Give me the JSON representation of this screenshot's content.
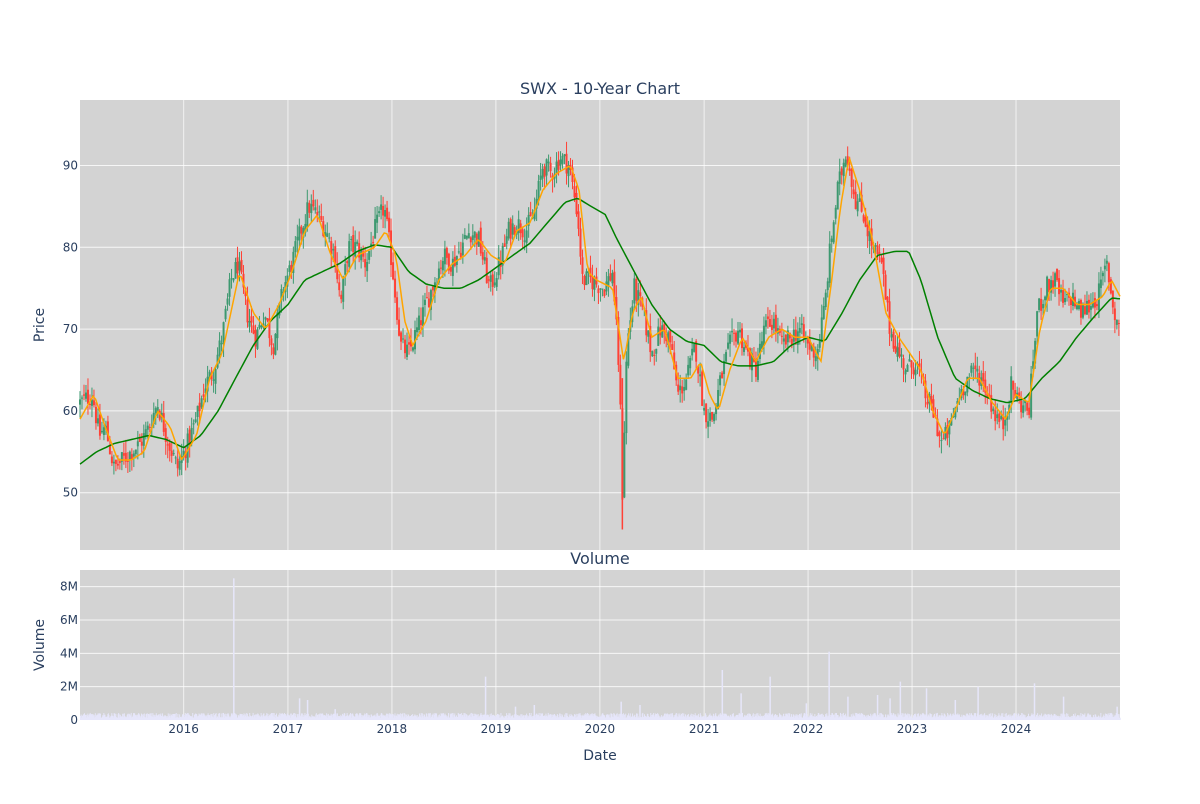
{
  "chart_data": [
    {
      "type": "candlestick",
      "title": "SWX - 10-Year Chart",
      "ylabel": "Price",
      "ylim": [
        43,
        98
      ],
      "yticks": [
        50,
        60,
        70,
        80,
        90
      ],
      "xrange": [
        "2015-01-02",
        "2024-12-31"
      ],
      "grid": true,
      "legend": "none",
      "colors": {
        "background": "#d3d3d3",
        "increasing": "#3d9970",
        "decreasing": "#ff4136",
        "ma_short": "#ffa500",
        "ma_long": "#008000",
        "grid": "#ffffff"
      },
      "close_points": [
        [
          "2015-01-02",
          61
        ],
        [
          "2015-02-15",
          62
        ],
        [
          "2015-03-10",
          57
        ],
        [
          "2015-04-01",
          58
        ],
        [
          "2015-05-01",
          53
        ],
        [
          "2015-06-01",
          54
        ],
        [
          "2015-07-01",
          55
        ],
        [
          "2015-08-01",
          56
        ],
        [
          "2015-09-01",
          58
        ],
        [
          "2015-10-01",
          61
        ],
        [
          "2015-11-01",
          57
        ],
        [
          "2015-12-10",
          53
        ],
        [
          "2016-01-15",
          56
        ],
        [
          "2016-02-15",
          59
        ],
        [
          "2016-03-15",
          63
        ],
        [
          "2016-04-15",
          65
        ],
        [
          "2016-05-15",
          69
        ],
        [
          "2016-06-15",
          76
        ],
        [
          "2016-07-10",
          78
        ],
        [
          "2016-08-10",
          72
        ],
        [
          "2016-09-10",
          69
        ],
        [
          "2016-10-10",
          72
        ],
        [
          "2016-11-10",
          68
        ],
        [
          "2016-12-15",
          75
        ],
        [
          "2017-01-15",
          78
        ],
        [
          "2017-02-15",
          82
        ],
        [
          "2017-03-15",
          85
        ],
        [
          "2017-04-15",
          84
        ],
        [
          "2017-05-15",
          82
        ],
        [
          "2017-06-15",
          79
        ],
        [
          "2017-07-05",
          73
        ],
        [
          "2017-08-01",
          80
        ],
        [
          "2017-09-01",
          80
        ],
        [
          "2017-10-01",
          78
        ],
        [
          "2017-11-01",
          82
        ],
        [
          "2017-12-05",
          85
        ],
        [
          "2018-01-01",
          78
        ],
        [
          "2018-02-01",
          68
        ],
        [
          "2018-03-01",
          67
        ],
        [
          "2018-04-01",
          70
        ],
        [
          "2018-05-01",
          73
        ],
        [
          "2018-06-01",
          76
        ],
        [
          "2018-07-01",
          79
        ],
        [
          "2018-08-01",
          78
        ],
        [
          "2018-09-01",
          80
        ],
        [
          "2018-10-01",
          82
        ],
        [
          "2018-11-01",
          81
        ],
        [
          "2018-12-10",
          75
        ],
        [
          "2019-01-15",
          78
        ],
        [
          "2019-02-15",
          82
        ],
        [
          "2019-03-15",
          83
        ],
        [
          "2019-04-15",
          82
        ],
        [
          "2019-05-15",
          84
        ],
        [
          "2019-06-15",
          90
        ],
        [
          "2019-07-15",
          89
        ],
        [
          "2019-08-15",
          91
        ],
        [
          "2019-09-15",
          90
        ],
        [
          "2019-10-15",
          84
        ],
        [
          "2019-11-01",
          76
        ],
        [
          "2019-12-01",
          76
        ],
        [
          "2020-01-15",
          75
        ],
        [
          "2020-02-15",
          77
        ],
        [
          "2020-03-10",
          64
        ],
        [
          "2020-03-20",
          50
        ],
        [
          "2020-04-05",
          68
        ],
        [
          "2020-05-01",
          75
        ],
        [
          "2020-06-01",
          72
        ],
        [
          "2020-07-01",
          67
        ],
        [
          "2020-08-01",
          70
        ],
        [
          "2020-09-01",
          69
        ],
        [
          "2020-10-01",
          62
        ],
        [
          "2020-11-01",
          64
        ],
        [
          "2020-12-01",
          68
        ],
        [
          "2021-01-01",
          60
        ],
        [
          "2021-02-01",
          59
        ],
        [
          "2021-03-01",
          64
        ],
        [
          "2021-04-01",
          68
        ],
        [
          "2021-05-01",
          70
        ],
        [
          "2021-06-01",
          67
        ],
        [
          "2021-07-01",
          65
        ],
        [
          "2021-08-01",
          70
        ],
        [
          "2021-09-01",
          71
        ],
        [
          "2021-10-01",
          68
        ],
        [
          "2021-11-01",
          69
        ],
        [
          "2021-12-01",
          70
        ],
        [
          "2022-01-01",
          68
        ],
        [
          "2022-02-01",
          67
        ],
        [
          "2022-03-01",
          73
        ],
        [
          "2022-03-20",
          80
        ],
        [
          "2022-04-15",
          87
        ],
        [
          "2022-05-15",
          92
        ],
        [
          "2022-06-15",
          86
        ],
        [
          "2022-07-15",
          84
        ],
        [
          "2022-08-15",
          80
        ],
        [
          "2022-09-15",
          78
        ],
        [
          "2022-10-15",
          70
        ],
        [
          "2022-11-15",
          67
        ],
        [
          "2022-12-15",
          65
        ],
        [
          "2023-01-15",
          66
        ],
        [
          "2023-02-15",
          62
        ],
        [
          "2023-03-15",
          60
        ],
        [
          "2023-04-15",
          56
        ],
        [
          "2023-05-15",
          58
        ],
        [
          "2023-06-15",
          62
        ],
        [
          "2023-07-15",
          64
        ],
        [
          "2023-08-15",
          65
        ],
        [
          "2023-09-15",
          63
        ],
        [
          "2023-10-15",
          60
        ],
        [
          "2023-11-15",
          58
        ],
        [
          "2023-12-15",
          63
        ],
        [
          "2024-01-15",
          61
        ],
        [
          "2024-02-15",
          60
        ],
        [
          "2024-03-15",
          72
        ],
        [
          "2024-04-15",
          75
        ],
        [
          "2024-05-15",
          76
        ],
        [
          "2024-06-15",
          73
        ],
        [
          "2024-07-15",
          74
        ],
        [
          "2024-08-15",
          72
        ],
        [
          "2024-09-15",
          73
        ],
        [
          "2024-10-15",
          74
        ],
        [
          "2024-11-15",
          78
        ],
        [
          "2024-12-10",
          72
        ],
        [
          "2024-12-31",
          70
        ]
      ],
      "ma_short_points": [
        [
          "2015-01-02",
          59
        ],
        [
          "2015-02-20",
          62
        ],
        [
          "2015-04-01",
          58
        ],
        [
          "2015-05-15",
          54
        ],
        [
          "2015-07-01",
          54
        ],
        [
          "2015-08-15",
          55
        ],
        [
          "2015-10-01",
          60
        ],
        [
          "2015-11-15",
          58
        ],
        [
          "2015-12-25",
          54
        ],
        [
          "2016-02-15",
          57
        ],
        [
          "2016-04-01",
          64
        ],
        [
          "2016-05-15",
          67
        ],
        [
          "2016-07-15",
          77
        ],
        [
          "2016-09-01",
          72
        ],
        [
          "2016-10-15",
          70
        ],
        [
          "2016-12-01",
          73
        ],
        [
          "2017-01-15",
          77
        ],
        [
          "2017-03-01",
          82
        ],
        [
          "2017-04-15",
          84
        ],
        [
          "2017-06-01",
          79
        ],
        [
          "2017-07-15",
          76
        ],
        [
          "2017-09-01",
          79
        ],
        [
          "2017-11-01",
          80
        ],
        [
          "2017-12-10",
          82
        ],
        [
          "2018-01-15",
          79
        ],
        [
          "2018-02-15",
          71
        ],
        [
          "2018-03-15",
          68
        ],
        [
          "2018-05-01",
          71
        ],
        [
          "2018-06-15",
          76
        ],
        [
          "2018-08-01",
          78
        ],
        [
          "2018-09-15",
          79
        ],
        [
          "2018-11-01",
          81
        ],
        [
          "2018-12-15",
          79
        ],
        [
          "2019-02-01",
          78
        ],
        [
          "2019-03-15",
          82
        ],
        [
          "2019-05-01",
          83
        ],
        [
          "2019-06-15",
          87
        ],
        [
          "2019-08-01",
          89
        ],
        [
          "2019-09-20",
          90
        ],
        [
          "2019-10-20",
          87
        ],
        [
          "2019-11-20",
          77
        ],
        [
          "2019-12-20",
          76
        ],
        [
          "2020-02-15",
          75
        ],
        [
          "2020-03-25",
          66
        ],
        [
          "2020-04-25",
          72
        ],
        [
          "2020-05-25",
          74
        ],
        [
          "2020-07-01",
          69
        ],
        [
          "2020-08-15",
          70
        ],
        [
          "2020-10-01",
          64
        ],
        [
          "2020-11-15",
          64
        ],
        [
          "2020-12-20",
          66
        ],
        [
          "2021-01-20",
          62
        ],
        [
          "2021-02-20",
          60
        ],
        [
          "2021-04-01",
          65
        ],
        [
          "2021-05-15",
          69
        ],
        [
          "2021-07-01",
          66
        ],
        [
          "2021-08-15",
          69
        ],
        [
          "2021-10-01",
          70
        ],
        [
          "2021-11-15",
          69
        ],
        [
          "2022-01-01",
          69
        ],
        [
          "2022-02-15",
          66
        ],
        [
          "2022-03-25",
          76
        ],
        [
          "2022-04-25",
          85
        ],
        [
          "2022-05-25",
          91
        ],
        [
          "2022-07-01",
          87
        ],
        [
          "2022-08-15",
          81
        ],
        [
          "2022-10-01",
          72
        ],
        [
          "2022-11-15",
          69
        ],
        [
          "2022-12-25",
          67
        ],
        [
          "2023-02-01",
          65
        ],
        [
          "2023-03-15",
          60
        ],
        [
          "2023-04-25",
          57
        ],
        [
          "2023-06-01",
          60
        ],
        [
          "2023-07-15",
          64
        ],
        [
          "2023-08-25",
          64
        ],
        [
          "2023-10-10",
          61
        ],
        [
          "2023-11-25",
          59
        ],
        [
          "2024-01-01",
          62
        ],
        [
          "2024-02-15",
          61
        ],
        [
          "2024-03-25",
          70
        ],
        [
          "2024-05-01",
          75
        ],
        [
          "2024-06-15",
          75
        ],
        [
          "2024-08-01",
          73
        ],
        [
          "2024-09-15",
          73
        ],
        [
          "2024-11-01",
          74
        ],
        [
          "2024-12-01",
          76
        ],
        [
          "2024-12-31",
          74
        ]
      ],
      "ma_long_points": [
        [
          "2015-01-02",
          53.5
        ],
        [
          "2015-03-01",
          55
        ],
        [
          "2015-05-01",
          56
        ],
        [
          "2015-07-01",
          56.5
        ],
        [
          "2015-09-01",
          57
        ],
        [
          "2015-11-01",
          56.5
        ],
        [
          "2016-01-01",
          55.5
        ],
        [
          "2016-03-01",
          57
        ],
        [
          "2016-05-01",
          60
        ],
        [
          "2016-07-01",
          64
        ],
        [
          "2016-09-01",
          68
        ],
        [
          "2016-11-01",
          71
        ],
        [
          "2017-01-01",
          73
        ],
        [
          "2017-03-01",
          76
        ],
        [
          "2017-05-01",
          77
        ],
        [
          "2017-07-01",
          78
        ],
        [
          "2017-09-01",
          79.5
        ],
        [
          "2017-11-01",
          80.3
        ],
        [
          "2018-01-01",
          80
        ],
        [
          "2018-03-01",
          77
        ],
        [
          "2018-05-01",
          75.5
        ],
        [
          "2018-07-01",
          75
        ],
        [
          "2018-09-01",
          75
        ],
        [
          "2018-11-01",
          76
        ],
        [
          "2019-01-01",
          77.5
        ],
        [
          "2019-03-01",
          79
        ],
        [
          "2019-05-01",
          80.5
        ],
        [
          "2019-07-01",
          83
        ],
        [
          "2019-09-01",
          85.5
        ],
        [
          "2019-10-15",
          86
        ],
        [
          "2019-12-01",
          85
        ],
        [
          "2020-01-20",
          84
        ],
        [
          "2020-03-01",
          81
        ],
        [
          "2020-05-01",
          77
        ],
        [
          "2020-07-01",
          73
        ],
        [
          "2020-09-01",
          70
        ],
        [
          "2020-11-01",
          68.5
        ],
        [
          "2021-01-01",
          68
        ],
        [
          "2021-03-01",
          66
        ],
        [
          "2021-05-01",
          65.5
        ],
        [
          "2021-07-01",
          65.5
        ],
        [
          "2021-09-01",
          66
        ],
        [
          "2021-11-01",
          68
        ],
        [
          "2022-01-01",
          69
        ],
        [
          "2022-03-01",
          68.5
        ],
        [
          "2022-05-01",
          72
        ],
        [
          "2022-07-01",
          76
        ],
        [
          "2022-09-01",
          79
        ],
        [
          "2022-11-01",
          79.5
        ],
        [
          "2022-12-20",
          79.5
        ],
        [
          "2023-02-01",
          76
        ],
        [
          "2023-04-01",
          69
        ],
        [
          "2023-06-01",
          64
        ],
        [
          "2023-08-01",
          62.5
        ],
        [
          "2023-10-01",
          61.5
        ],
        [
          "2023-12-01",
          61
        ],
        [
          "2024-02-01",
          61.5
        ],
        [
          "2024-04-01",
          64
        ],
        [
          "2024-06-01",
          66
        ],
        [
          "2024-08-01",
          69
        ],
        [
          "2024-10-01",
          71.5
        ],
        [
          "2024-12-01",
          73.8
        ],
        [
          "2024-12-31",
          73.7
        ]
      ]
    },
    {
      "type": "bar",
      "title": "Volume",
      "ylabel": "Volume",
      "xlabel": "Date",
      "ylim": [
        0,
        9000000
      ],
      "yticks": [
        0,
        2000000,
        4000000,
        6000000,
        8000000
      ],
      "ytick_labels": [
        "0",
        "2M",
        "4M",
        "6M",
        "8M"
      ],
      "xtick_labels": [
        "2016",
        "2017",
        "2018",
        "2019",
        "2020",
        "2021",
        "2022",
        "2023",
        "2024"
      ],
      "grid": true,
      "colors": {
        "background": "#d3d3d3",
        "bar": "#e6e6fa",
        "grid": "#ffffff"
      },
      "base_level": 250000,
      "spikes": [
        [
          "2016-06-24",
          8500000
        ],
        [
          "2017-02-10",
          1300000
        ],
        [
          "2017-03-10",
          1200000
        ],
        [
          "2017-06-15",
          650000
        ],
        [
          "2018-11-25",
          2600000
        ],
        [
          "2019-03-10",
          800000
        ],
        [
          "2019-05-15",
          900000
        ],
        [
          "2020-03-15",
          1100000
        ],
        [
          "2020-05-20",
          900000
        ],
        [
          "2021-03-05",
          3000000
        ],
        [
          "2021-05-10",
          1600000
        ],
        [
          "2021-08-20",
          2600000
        ],
        [
          "2021-12-25",
          1000000
        ],
        [
          "2022-03-15",
          4100000
        ],
        [
          "2022-05-20",
          1400000
        ],
        [
          "2022-09-01",
          1500000
        ],
        [
          "2022-10-15",
          1300000
        ],
        [
          "2022-11-20",
          2300000
        ],
        [
          "2023-02-20",
          1900000
        ],
        [
          "2023-06-01",
          1200000
        ],
        [
          "2023-08-20",
          2000000
        ],
        [
          "2024-03-05",
          2200000
        ],
        [
          "2024-06-15",
          1400000
        ],
        [
          "2024-12-20",
          800000
        ]
      ]
    }
  ]
}
